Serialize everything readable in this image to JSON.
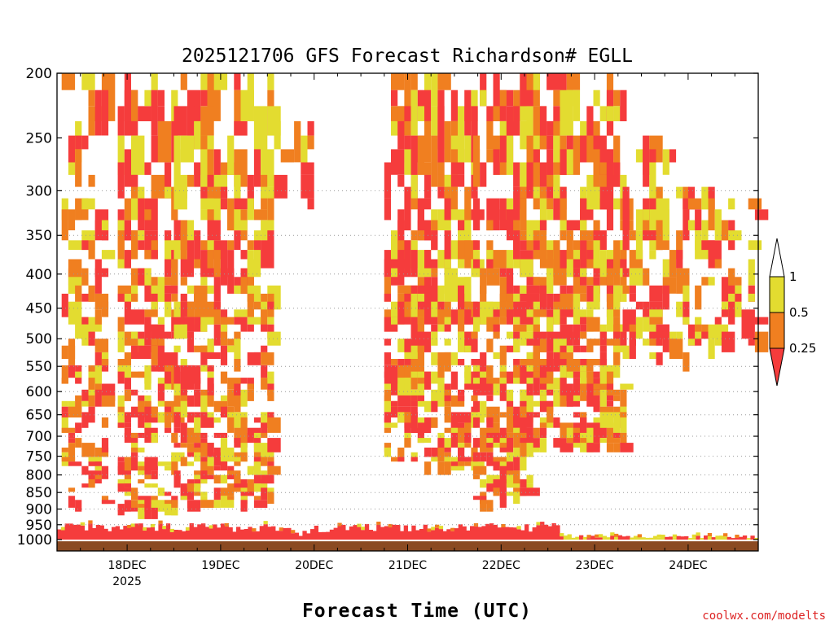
{
  "chart_data": {
    "type": "heatmap",
    "title": "2025121706 GFS Forecast Richardson# EGLL",
    "xlabel": "Forecast Time (UTC)",
    "ylabel": "",
    "y_axis": {
      "ticks": [
        200,
        250,
        300,
        350,
        400,
        450,
        500,
        550,
        600,
        650,
        700,
        750,
        800,
        850,
        900,
        950,
        1000
      ],
      "range": [
        1040,
        200
      ],
      "scale": "log",
      "direction": "pressure-decreasing-upward"
    },
    "x_axis": {
      "ticks": [
        {
          "label": "18DEC",
          "day": 18,
          "sub": "2025"
        },
        {
          "label": "19DEC",
          "day": 19,
          "sub": ""
        },
        {
          "label": "20DEC",
          "day": 20,
          "sub": ""
        },
        {
          "label": "21DEC",
          "day": 21,
          "sub": ""
        },
        {
          "label": "22DEC",
          "day": 22,
          "sub": ""
        },
        {
          "label": "23DEC",
          "day": 23,
          "sub": ""
        },
        {
          "label": "24DEC",
          "day": 24,
          "sub": ""
        }
      ],
      "range_days": [
        17.25,
        24.75
      ],
      "step_hours": 1
    },
    "legend": {
      "position": "right",
      "labels": [
        "1",
        "0.5",
        "0.25"
      ],
      "bins": [
        {
          "range": "> 1",
          "color": "#ffffff"
        },
        {
          "range": "0.5 - 1",
          "color": "#e3dc30"
        },
        {
          "range": "0.25 - 0.5",
          "color": "#f07f20"
        },
        {
          "range": "< 0.25",
          "color": "#f53c3c"
        }
      ]
    },
    "grid_lines": [
      300,
      350,
      400,
      450,
      500,
      550,
      600,
      650,
      700,
      750,
      800,
      850,
      900,
      950
    ],
    "colors": {
      "low": "#f53c3c",
      "mid": "#f07f20",
      "high": "#e3dc30",
      "ground": "#8b4a22"
    },
    "features": {
      "surface_layer_top_hPa": [
        955,
        965,
        985,
        995
      ],
      "upper_bands": [
        {
          "day_start": 17.3,
          "day_end": 17.8,
          "hPa_top": 200,
          "hPa_bottom": 880,
          "intensity": 0.55
        },
        {
          "day_start": 17.9,
          "day_end": 18.5,
          "hPa_top": 200,
          "hPa_bottom": 900,
          "intensity": 0.75
        },
        {
          "day_start": 18.5,
          "day_end": 19.5,
          "hPa_top": 200,
          "hPa_bottom": 880,
          "intensity": 0.75
        },
        {
          "day_start": 19.5,
          "day_end": 19.95,
          "hPa_top": 230,
          "hPa_bottom": 330,
          "intensity": 0.3
        },
        {
          "day_start": 20.75,
          "day_end": 21.7,
          "hPa_top": 200,
          "hPa_bottom": 770,
          "intensity": 0.85
        },
        {
          "day_start": 21.7,
          "day_end": 22.3,
          "hPa_top": 200,
          "hPa_bottom": 880,
          "intensity": 0.7
        },
        {
          "day_start": 22.2,
          "day_end": 23.3,
          "hPa_top": 200,
          "hPa_bottom": 720,
          "intensity": 0.85
        },
        {
          "day_start": 23.3,
          "day_end": 24.0,
          "hPa_top": 240,
          "hPa_bottom": 530,
          "intensity": 0.6
        },
        {
          "day_start": 24.0,
          "day_end": 24.75,
          "hPa_top": 290,
          "hPa_bottom": 500,
          "intensity": 0.5
        }
      ]
    }
  },
  "credit": "coolwx.com/modelts"
}
